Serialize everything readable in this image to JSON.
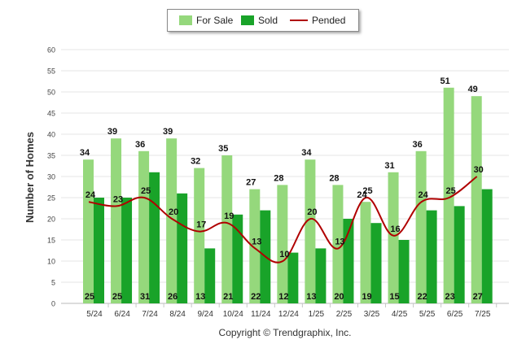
{
  "chart_data": {
    "type": "bar",
    "ylabel": "Number of Homes",
    "ylim": [
      0,
      60
    ],
    "yticks": [
      0,
      5,
      10,
      15,
      20,
      25,
      30,
      35,
      40,
      45,
      50,
      55,
      60
    ],
    "categories": [
      "5/24",
      "6/24",
      "7/24",
      "8/24",
      "9/24",
      "10/24",
      "11/24",
      "12/24",
      "1/25",
      "2/25",
      "3/25",
      "4/25",
      "5/25",
      "6/25",
      "7/25"
    ],
    "series": [
      {
        "name": "For Sale",
        "kind": "bar",
        "color": "#95d87c",
        "values": [
          34,
          39,
          36,
          39,
          32,
          35,
          27,
          28,
          34,
          28,
          24,
          31,
          36,
          51,
          49
        ]
      },
      {
        "name": "Sold",
        "kind": "bar",
        "color": "#19a329",
        "values": [
          25,
          25,
          31,
          26,
          13,
          21,
          22,
          12,
          13,
          20,
          19,
          15,
          22,
          23,
          27
        ]
      },
      {
        "name": "Pended",
        "kind": "line",
        "color": "#b00000",
        "values": [
          24,
          23,
          25,
          20,
          17,
          19,
          13,
          10,
          20,
          13,
          25,
          16,
          24,
          25,
          30
        ]
      }
    ],
    "grid": true,
    "legend": "top-center",
    "credit": "Copyright © Trendgraphix, Inc."
  }
}
